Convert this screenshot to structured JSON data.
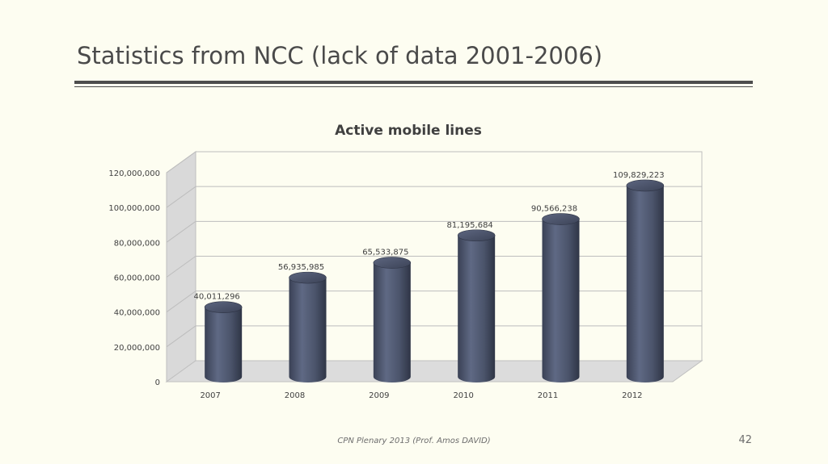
{
  "slide": {
    "title": "Statistics from NCC (lack of data 2001-2006)",
    "footer": "CPN Plenary 2013 (Prof. Amos DAVID)",
    "page_number": "42"
  },
  "chart_data": {
    "type": "bar",
    "title": "Active mobile lines",
    "xlabel": "",
    "ylabel": "",
    "categories": [
      "2007",
      "2008",
      "2009",
      "2010",
      "2011",
      "2012"
    ],
    "values": [
      40011296,
      56935985,
      65533875,
      81195684,
      90566238,
      109829223
    ],
    "data_labels": [
      "40,011,296",
      "56,935,985",
      "65,533,875",
      "81,195,684",
      "90,566,238",
      "109,829,223"
    ],
    "ylim": [
      0,
      120000000
    ],
    "yticks": [
      0,
      20000000,
      40000000,
      60000000,
      80000000,
      100000000,
      120000000
    ],
    "ytick_labels": [
      "0",
      "20,000,000",
      "40,000,000",
      "60,000,000",
      "80,000,000",
      "100,000,000",
      "120,000,000"
    ],
    "grid": true,
    "legend": "none",
    "style": "3d-cylinder",
    "colors": {
      "bar": "#4f5870",
      "bar_light": "#6b7590",
      "bar_dark": "#333a4d",
      "wall": "#fdfdf1",
      "floor": "#dcdcdc",
      "side_wall": "#d9d9d9"
    }
  }
}
